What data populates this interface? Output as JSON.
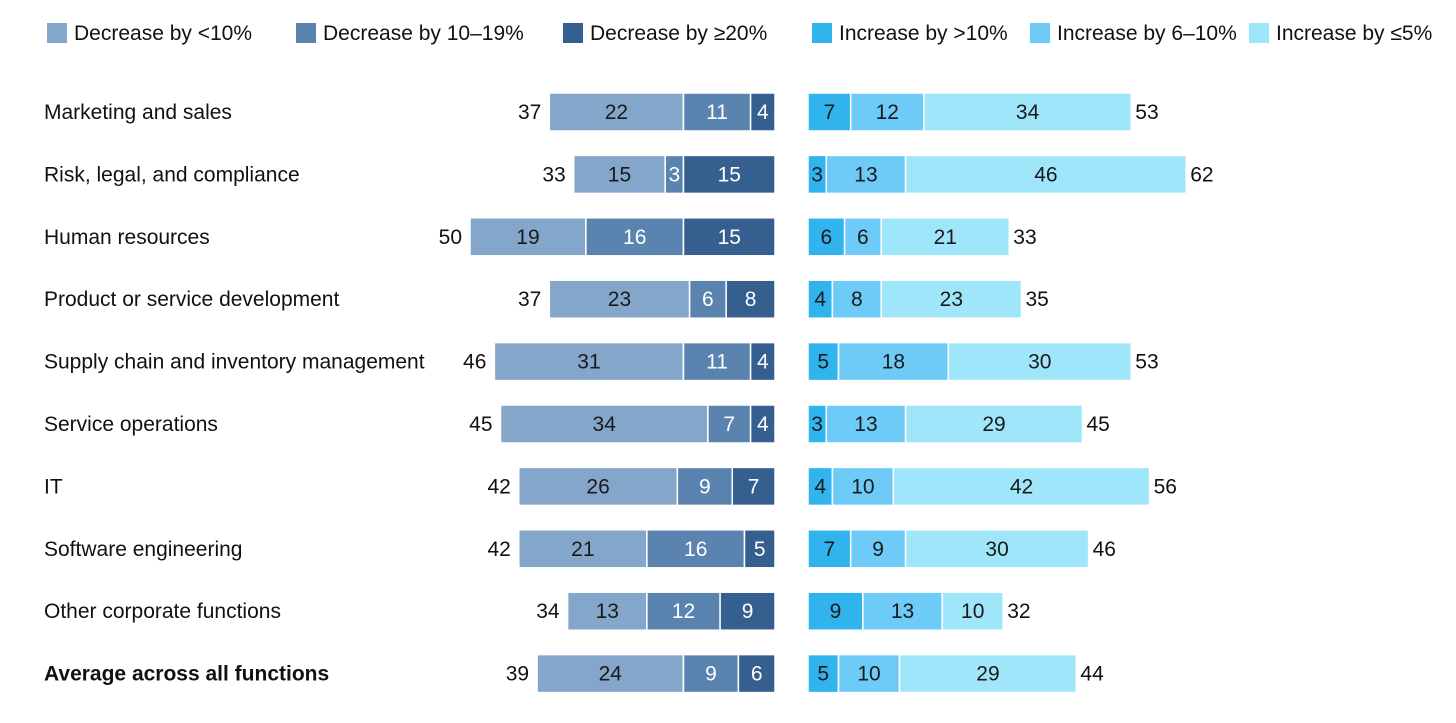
{
  "chart_data": {
    "type": "bar",
    "orientation": "horizontal",
    "layout": "diverging-stacked",
    "categories": [
      "Marketing and sales",
      "Risk, legal, and compliance",
      "Human resources",
      "Product or service development",
      "Supply chain and inventory management",
      "Service operations",
      "IT",
      "Software engineering",
      "Other corporate functions",
      "Average across all functions"
    ],
    "emphasized_category": "Average across all functions",
    "decrease_totals": [
      37,
      33,
      50,
      37,
      46,
      45,
      42,
      42,
      34,
      39
    ],
    "increase_totals": [
      53,
      62,
      33,
      35,
      53,
      45,
      56,
      46,
      32,
      44
    ],
    "series": [
      {
        "name": "Decrease by <10%",
        "side": "decrease",
        "color": "#85a6cb",
        "text_color": "#1a1a1a",
        "values": [
          22,
          15,
          19,
          23,
          31,
          34,
          26,
          21,
          13,
          24
        ]
      },
      {
        "name": "Decrease by 10–19%",
        "side": "decrease",
        "color": "#5b83b0",
        "text_color": "#ffffff",
        "values": [
          11,
          3,
          16,
          6,
          11,
          7,
          9,
          16,
          12,
          9
        ]
      },
      {
        "name": "Decrease by ≥20%",
        "side": "decrease",
        "color": "#345f8f",
        "text_color": "#ffffff",
        "values": [
          4,
          15,
          15,
          8,
          4,
          4,
          7,
          5,
          9,
          6
        ]
      },
      {
        "name": "Increase by >10%",
        "side": "increase",
        "color": "#31b4ee",
        "text_color": "#1a1a1a",
        "values": [
          7,
          3,
          6,
          4,
          5,
          3,
          4,
          7,
          9,
          5
        ]
      },
      {
        "name": "Increase by 6–10%",
        "side": "increase",
        "color": "#6ecaf6",
        "text_color": "#1a1a1a",
        "values": [
          12,
          13,
          6,
          8,
          18,
          13,
          10,
          9,
          13,
          10
        ]
      },
      {
        "name": "Increase by ≤5%",
        "side": "increase",
        "color": "#9fe6fb",
        "text_color": "#1a1a1a",
        "values": [
          34,
          46,
          21,
          23,
          30,
          29,
          42,
          30,
          10,
          29
        ]
      }
    ],
    "legend_placement": "top",
    "grid": false
  }
}
